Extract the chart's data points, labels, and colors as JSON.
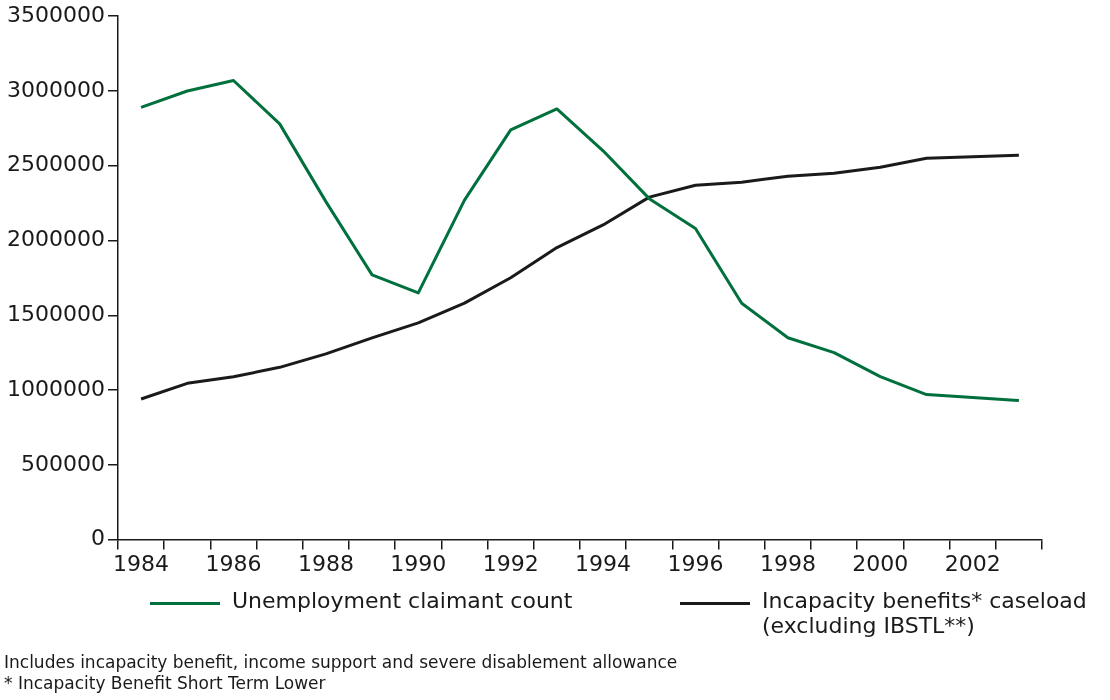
{
  "chart_data": {
    "type": "line",
    "categories": [
      "1984",
      null,
      "1986",
      null,
      "1988",
      null,
      "1990",
      null,
      "1992",
      null,
      "1994",
      null,
      "1996",
      null,
      "1998",
      null,
      "2000",
      null,
      "2002",
      null
    ],
    "series": [
      {
        "name": "Unemployment claimant count",
        "color": "#00703c",
        "values": [
          2890000,
          3000000,
          3070000,
          2780000,
          2260000,
          1770000,
          1650000,
          2270000,
          2740000,
          2880000,
          2600000,
          2280000,
          2080000,
          1580000,
          1350000,
          1250000,
          1090000,
          970000,
          950000,
          930000
        ]
      },
      {
        "name": "Incapacity benefits* caseload (excluding IBSTL**)",
        "color": "#1a1a1a",
        "values": [
          940000,
          1045000,
          1089000,
          1152000,
          1242000,
          1349000,
          1449000,
          1581000,
          1751000,
          1953000,
          2104000,
          2290000,
          2370000,
          2390000,
          2430000,
          2450000,
          2490000,
          2550000,
          2560000,
          2570000
        ]
      }
    ],
    "ylim": [
      0,
      3500000
    ],
    "yticks": [
      0,
      500000,
      1000000,
      1500000,
      2000000,
      2500000,
      3000000,
      3500000
    ],
    "grid": false,
    "legend": "bottom",
    "marker": "none",
    "line_style": "solid",
    "annotations": [
      "Includes incapacity benefit, income support and severe disablement allowance",
      "* Incapacity Benefit Short Term Lower"
    ]
  }
}
